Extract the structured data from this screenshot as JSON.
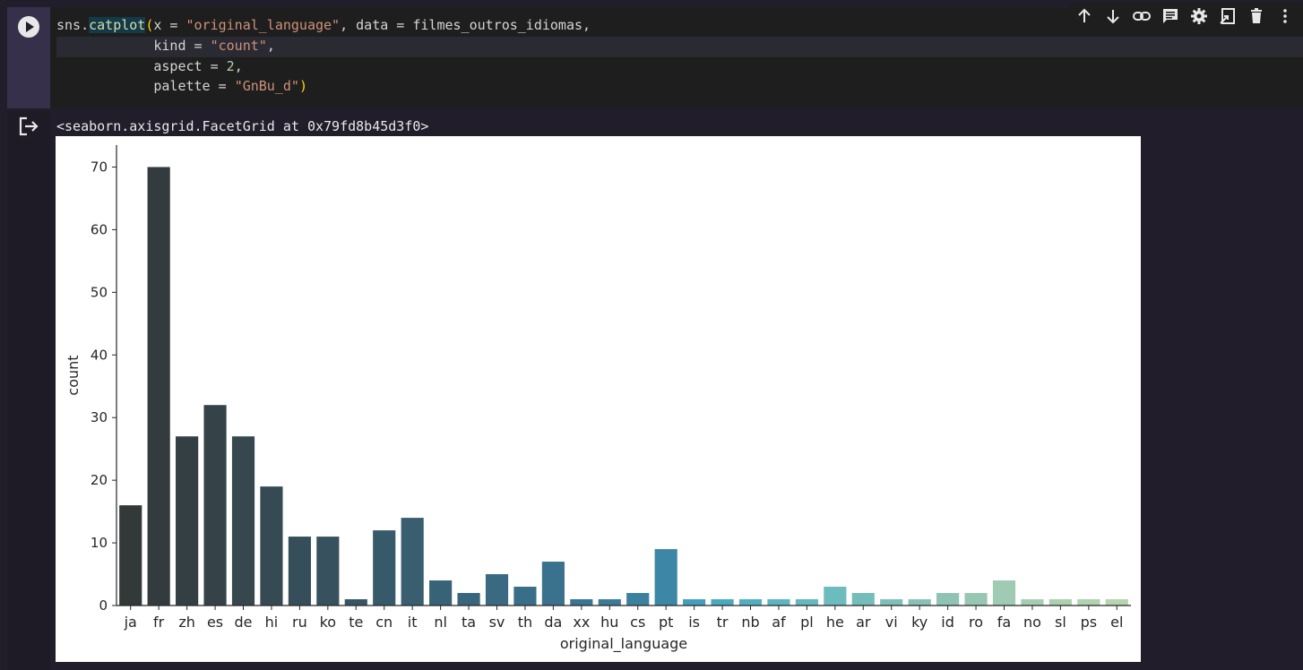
{
  "code": {
    "line1": {
      "a": "sns.",
      "fn": "catplot",
      "open": "(",
      "b": "x = ",
      "s1": "\"original_language\"",
      "c": ", data = filmes_outros_idiomas,"
    },
    "line2": {
      "a": "            kind = ",
      "s": "\"count\"",
      "b": ","
    },
    "line3": {
      "a": "            aspect = ",
      "n": "2",
      "b": ","
    },
    "line4": {
      "a": "            palette = ",
      "s": "\"GnBu_d\"",
      "close": ")"
    }
  },
  "toolbar": {
    "items": [
      "arrow-up-icon",
      "arrow-down-icon",
      "link-icon",
      "comment-icon",
      "gear-icon",
      "mirror-cell-icon",
      "trash-icon",
      "more-vert-icon"
    ]
  },
  "output": {
    "text": "<seaborn.axisgrid.FacetGrid at 0x79fd8b45d3f0>"
  },
  "chart_data": {
    "type": "bar",
    "xlabel": "original_language",
    "ylabel": "count",
    "ylim": [
      0,
      73.5
    ],
    "yticks": [
      0,
      10,
      20,
      30,
      40,
      50,
      60,
      70
    ],
    "categories": [
      "ja",
      "fr",
      "zh",
      "es",
      "de",
      "hi",
      "ru",
      "ko",
      "te",
      "cn",
      "it",
      "nl",
      "ta",
      "sv",
      "th",
      "da",
      "xx",
      "hu",
      "cs",
      "pt",
      "is",
      "tr",
      "nb",
      "af",
      "pl",
      "he",
      "ar",
      "vi",
      "ky",
      "id",
      "ro",
      "fa",
      "no",
      "sl",
      "ps",
      "el"
    ],
    "values": [
      16,
      70,
      27,
      32,
      27,
      19,
      11,
      11,
      1,
      12,
      14,
      4,
      2,
      5,
      3,
      7,
      1,
      1,
      2,
      9,
      1,
      1,
      1,
      1,
      1,
      3,
      2,
      1,
      1,
      2,
      2,
      4,
      1,
      1,
      1,
      1
    ],
    "colors": [
      "#333839",
      "#343b3e",
      "#343f44",
      "#354349",
      "#36474e",
      "#364a54",
      "#364e59",
      "#37525e",
      "#375664",
      "#375a6a",
      "#385e70",
      "#386276",
      "#38667c",
      "#396a82",
      "#396e88",
      "#3a728e",
      "#3a7693",
      "#3a7b99",
      "#3b809f",
      "#3c86a6",
      "#42a0bc",
      "#48a9bf",
      "#4fb1c0",
      "#5ab6c1",
      "#63b9bf",
      "#6cbbbd",
      "#75bdbb",
      "#7ebfb8",
      "#86c2b6",
      "#8fc4b5",
      "#97c7b4",
      "#9fcab3",
      "#a5cdb1",
      "#abd0b0",
      "#b1d2ae",
      "#b6d4ad"
    ],
    "grid": false,
    "legend": "none"
  }
}
